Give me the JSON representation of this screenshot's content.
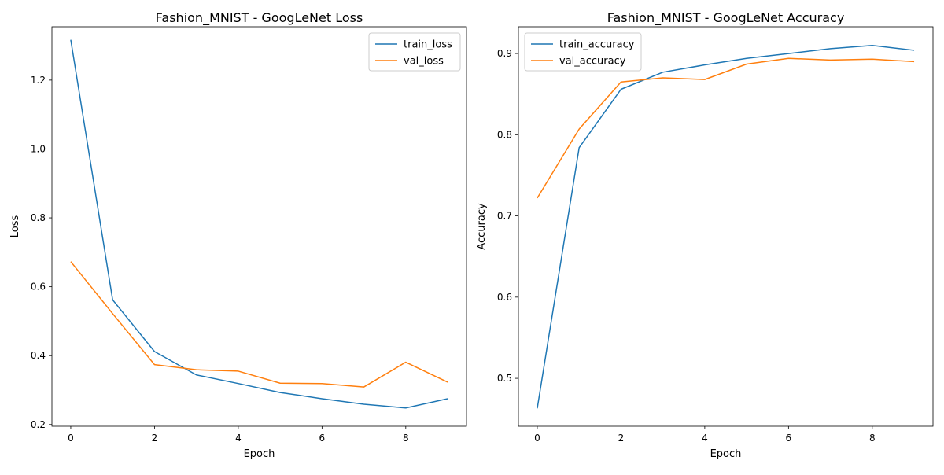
{
  "chart_data": [
    {
      "type": "line",
      "title": "Fashion_MNIST - GoogLeNet Loss",
      "xlabel": "Epoch",
      "ylabel": "Loss",
      "xlim": [
        -0.45,
        9.45
      ],
      "ylim": [
        0.195,
        1.355
      ],
      "xticks": [
        0,
        2,
        4,
        6,
        8
      ],
      "xtick_labels": [
        "0",
        "2",
        "4",
        "6",
        "8"
      ],
      "yticks": [
        0.2,
        0.4,
        0.6,
        0.8,
        1.0,
        1.2
      ],
      "ytick_labels": [
        "0.2",
        "0.4",
        "0.6",
        "0.8",
        "1.0",
        "1.2"
      ],
      "grid": false,
      "legend_position": "top-right",
      "x": [
        0,
        1,
        2,
        3,
        4,
        5,
        6,
        7,
        8,
        9
      ],
      "series": [
        {
          "name": "train_loss",
          "color": "#1f77b4",
          "values": [
            1.317,
            0.562,
            0.412,
            0.344,
            0.319,
            0.293,
            0.275,
            0.259,
            0.248,
            0.275
          ]
        },
        {
          "name": "val_loss",
          "color": "#ff7f0e",
          "values": [
            0.673,
            0.522,
            0.374,
            0.359,
            0.355,
            0.32,
            0.319,
            0.309,
            0.381,
            0.323
          ]
        }
      ]
    },
    {
      "type": "line",
      "title": "Fashion_MNIST - GoogLeNet Accuracy",
      "xlabel": "Epoch",
      "ylabel": "Accuracy",
      "xlim": [
        -0.45,
        9.45
      ],
      "ylim": [
        0.441,
        0.933
      ],
      "xticks": [
        0,
        2,
        4,
        6,
        8
      ],
      "xtick_labels": [
        "0",
        "2",
        "4",
        "6",
        "8"
      ],
      "yticks": [
        0.5,
        0.6,
        0.7,
        0.8,
        0.9
      ],
      "ytick_labels": [
        "0.5",
        "0.6",
        "0.7",
        "0.8",
        "0.9"
      ],
      "grid": false,
      "legend_position": "top-left",
      "x": [
        0,
        1,
        2,
        3,
        4,
        5,
        6,
        7,
        8,
        9
      ],
      "series": [
        {
          "name": "train_accuracy",
          "color": "#1f77b4",
          "values": [
            0.463,
            0.784,
            0.856,
            0.877,
            0.886,
            0.894,
            0.9,
            0.906,
            0.91,
            0.904
          ]
        },
        {
          "name": "val_accuracy",
          "color": "#ff7f0e",
          "values": [
            0.722,
            0.807,
            0.865,
            0.87,
            0.868,
            0.887,
            0.894,
            0.892,
            0.893,
            0.89
          ]
        }
      ]
    }
  ]
}
